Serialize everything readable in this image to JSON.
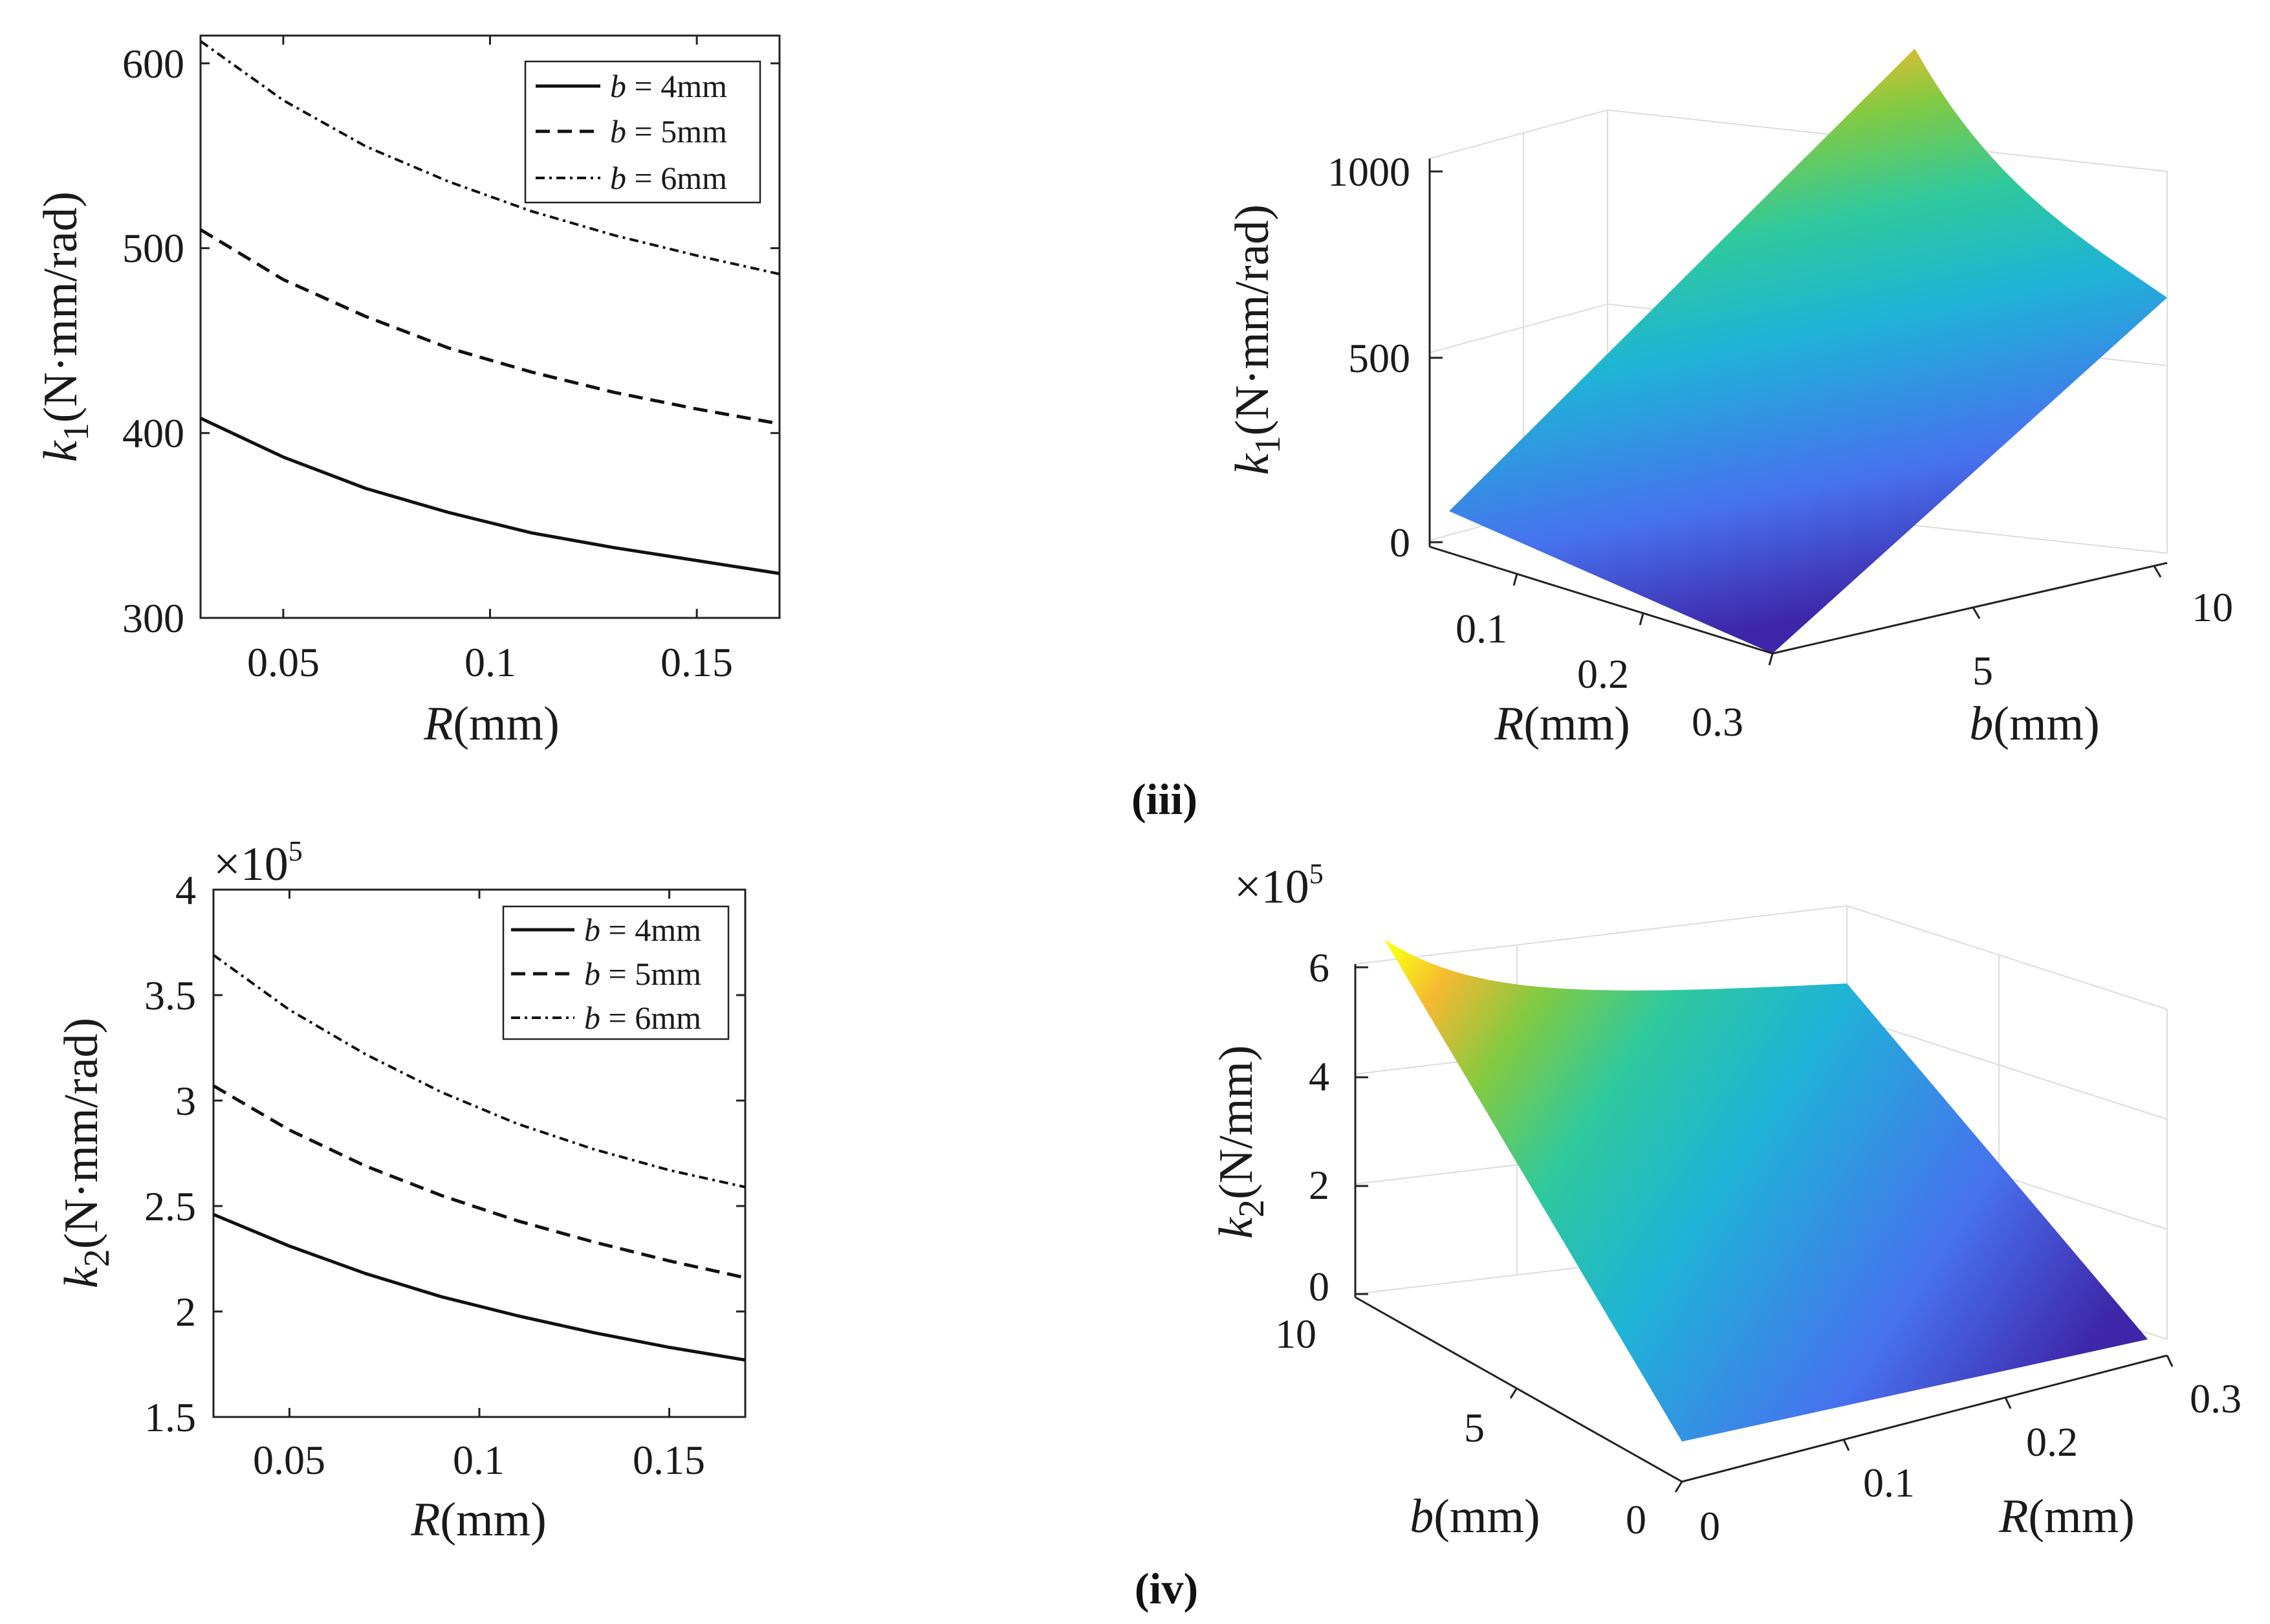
{
  "chart_data": [
    {
      "type": "line",
      "panel": "top-left",
      "xlabel": {
        "var": "R",
        "unit": "(mm)"
      },
      "ylabel": {
        "var": "k",
        "sub": "1",
        "unit": "(N·mm/rad)"
      },
      "xlim": [
        0.03,
        0.17
      ],
      "ylim": [
        300,
        615
      ],
      "xticks": [
        "0.05",
        "0.1",
        "0.15"
      ],
      "xtick_values": [
        0.05,
        0.1,
        0.15
      ],
      "yticks": [
        "300",
        "400",
        "500",
        "600"
      ],
      "ytick_values": [
        300,
        400,
        500,
        600
      ],
      "legend_position": "top-right",
      "series": [
        {
          "name": "b = 4mm",
          "var": "b",
          "text": " = 4mm",
          "style": "solid",
          "x": [
            0.03,
            0.05,
            0.07,
            0.09,
            0.11,
            0.13,
            0.15,
            0.17
          ],
          "y": [
            408,
            387,
            370,
            357,
            346,
            338,
            331,
            324
          ]
        },
        {
          "name": "b = 5mm",
          "var": "b",
          "text": " = 5mm",
          "style": "dashed",
          "x": [
            0.03,
            0.05,
            0.07,
            0.09,
            0.11,
            0.13,
            0.15,
            0.17
          ],
          "y": [
            510,
            483,
            463,
            446,
            433,
            422,
            413,
            405
          ]
        },
        {
          "name": "b = 6mm",
          "var": "b",
          "text": " = 6mm",
          "style": "dashdot",
          "x": [
            0.03,
            0.05,
            0.07,
            0.09,
            0.11,
            0.13,
            0.15,
            0.17
          ],
          "y": [
            612,
            580,
            555,
            536,
            520,
            507,
            496,
            486
          ]
        }
      ]
    },
    {
      "type": "surface",
      "panel": "top-right",
      "label": "(iii)",
      "zlabel": {
        "var": "k",
        "sub": "1",
        "unit": "(N·mm/rad)"
      },
      "xlabel": {
        "var": "R",
        "unit": "(mm)"
      },
      "ylabel": {
        "var": "b",
        "unit": "(mm)"
      },
      "zticks": [
        "0",
        "500",
        "1000"
      ],
      "xticks": [
        "0.1",
        "0.2",
        "0.3"
      ],
      "yticks": [
        "5",
        "10"
      ],
      "z_range": [
        0,
        1150
      ],
      "colormap": [
        "#3e26a8",
        "#4771ee",
        "#1fb3d7",
        "#2ec99e",
        "#83ca41",
        "#f5b931",
        "#f9fb15"
      ]
    },
    {
      "type": "line",
      "panel": "bottom-left",
      "xlabel": {
        "var": "R",
        "unit": "(mm)"
      },
      "ylabel": {
        "var": "k",
        "sub": "2",
        "unit": "(N·mm/rad)"
      },
      "multiplier": {
        "base": "×10",
        "exp": "5"
      },
      "xlim": [
        0.03,
        0.17
      ],
      "ylim": [
        1.5,
        4.0
      ],
      "xticks": [
        "0.05",
        "0.1",
        "0.15"
      ],
      "xtick_values": [
        0.05,
        0.1,
        0.15
      ],
      "yticks": [
        "1.5",
        "2",
        "2.5",
        "3",
        "3.5",
        "4"
      ],
      "ytick_values": [
        1.5,
        2,
        2.5,
        3,
        3.5,
        4
      ],
      "legend_position": "top-right",
      "series": [
        {
          "name": "b = 4mm",
          "var": "b",
          "text": " = 4mm",
          "style": "solid",
          "x": [
            0.03,
            0.05,
            0.07,
            0.09,
            0.11,
            0.13,
            0.15,
            0.17
          ],
          "y": [
            2.46,
            2.31,
            2.18,
            2.07,
            1.98,
            1.9,
            1.83,
            1.77
          ]
        },
        {
          "name": "b = 5mm",
          "var": "b",
          "text": " = 5mm",
          "style": "dashed",
          "x": [
            0.03,
            0.05,
            0.07,
            0.09,
            0.11,
            0.13,
            0.15,
            0.17
          ],
          "y": [
            3.07,
            2.86,
            2.69,
            2.55,
            2.43,
            2.33,
            2.24,
            2.16
          ]
        },
        {
          "name": "b = 6mm",
          "var": "b",
          "text": " = 6mm",
          "style": "dashdot",
          "x": [
            0.03,
            0.05,
            0.07,
            0.09,
            0.11,
            0.13,
            0.15,
            0.17
          ],
          "y": [
            3.69,
            3.43,
            3.22,
            3.04,
            2.89,
            2.77,
            2.67,
            2.59
          ]
        }
      ]
    },
    {
      "type": "surface",
      "panel": "bottom-right",
      "label": "(iv)",
      "zlabel": {
        "var": "k",
        "sub": "2",
        "unit": "(N/mm)"
      },
      "multiplier": {
        "base": "×10",
        "exp": "5"
      },
      "xlabel": {
        "var": "R",
        "unit": "(mm)"
      },
      "ylabel": {
        "var": "b",
        "unit": "(mm)"
      },
      "zticks": [
        "0",
        "2",
        "4",
        "6"
      ],
      "xticks": [
        "0",
        "0.1",
        "0.2",
        "0.3"
      ],
      "yticks": [
        "0",
        "5",
        "10"
      ],
      "z_range": [
        0,
        6.3
      ],
      "colormap": [
        "#3e26a8",
        "#4771ee",
        "#1fb3d7",
        "#2ec99e",
        "#83ca41",
        "#f5b931",
        "#f9fb15"
      ]
    }
  ]
}
